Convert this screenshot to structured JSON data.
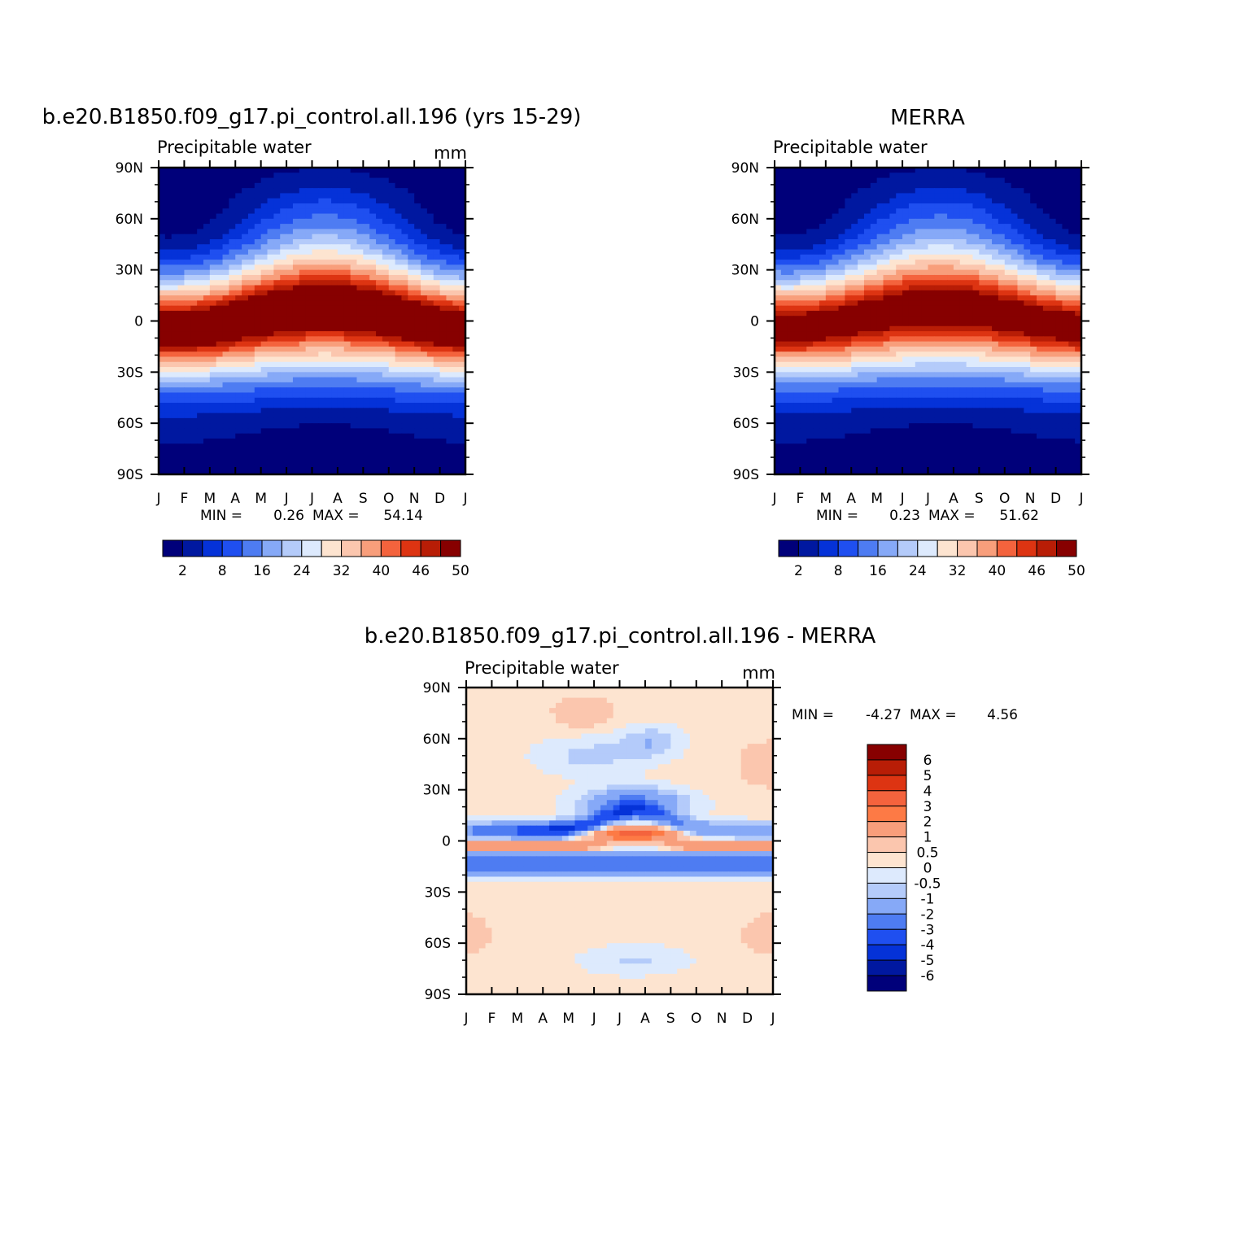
{
  "chart_data": [
    {
      "type": "heatmap",
      "title": "b.e20.B1850.f09_g17.pi_control.all.196 (yrs 15-29)",
      "subtitle": "Precipitable water",
      "units": "mm",
      "x_ticks": [
        "J",
        "F",
        "M",
        "A",
        "M",
        "J",
        "J",
        "A",
        "S",
        "O",
        "N",
        "D",
        "J"
      ],
      "y_ticks": [
        "90N",
        "60N",
        "30N",
        "0",
        "30S",
        "60S",
        "90S"
      ],
      "min_label": "MIN =",
      "min": "0.26",
      "max_label": "MAX =",
      "max": "54.14",
      "colorbar_labels": [
        "2",
        "8",
        "16",
        "24",
        "32",
        "40",
        "46",
        "50"
      ],
      "field": {
        "amplitude": 54,
        "itcz_lat_jan": -5,
        "itcz_lat_aug": 8,
        "nh_polar_extra": 5,
        "sh_polar_extra": 2
      }
    },
    {
      "type": "heatmap",
      "title": "MERRA",
      "subtitle": "Precipitable water",
      "min_label": "MIN =",
      "min": "0.23",
      "max_label": "MAX =",
      "max": "51.62",
      "x_ticks": [
        "J",
        "F",
        "M",
        "A",
        "M",
        "J",
        "J",
        "A",
        "S",
        "O",
        "N",
        "D",
        "J"
      ],
      "y_ticks": [
        "90N",
        "60N",
        "30N",
        "0",
        "30S",
        "60S",
        "90S"
      ],
      "colorbar_labels": [
        "2",
        "8",
        "16",
        "24",
        "32",
        "40",
        "46",
        "50"
      ],
      "field": {
        "amplitude": 51.5,
        "itcz_lat_jan": -4,
        "itcz_lat_aug": 8,
        "nh_polar_extra": 5,
        "sh_polar_extra": 2
      }
    },
    {
      "type": "heatmap",
      "title": "b.e20.B1850.f09_g17.pi_control.all.196 - MERRA",
      "subtitle": "Precipitable water",
      "units": "mm",
      "min_label": "MIN =",
      "min": "-4.27",
      "max_label": "MAX =",
      "max": "4.56",
      "x_ticks": [
        "J",
        "F",
        "M",
        "A",
        "M",
        "J",
        "J",
        "A",
        "S",
        "O",
        "N",
        "D",
        "J"
      ],
      "y_ticks": [
        "90N",
        "60N",
        "30N",
        "0",
        "30S",
        "60S",
        "90S"
      ],
      "colorbar_labels": [
        "6",
        "5",
        "4",
        "3",
        "2",
        "1",
        "0.5",
        "0",
        "-0.5",
        "-1",
        "-2",
        "-3",
        "-4",
        "-5",
        "-6"
      ]
    }
  ],
  "colors": {
    "abs_levels": [
      "#00007a",
      "#0018a0",
      "#0532d8",
      "#1f4ff0",
      "#4e7cf2",
      "#86a9f7",
      "#b4cbfa",
      "#ddeafd",
      "#fde4d0",
      "#fbc6ae",
      "#f89e7b",
      "#f4633d",
      "#dd3412",
      "#b81d06",
      "#870000"
    ],
    "diff_levels_top_to_bottom": [
      "#870000",
      "#b81d06",
      "#dd3412",
      "#f4633d",
      "#fd7a45",
      "#f89e7b",
      "#fbc6ae",
      "#fde4d0",
      "#ddeafd",
      "#b4cbfa",
      "#86a9f7",
      "#4e7cf2",
      "#1f4ff0",
      "#0532d8",
      "#0018a0",
      "#00007a"
    ]
  }
}
